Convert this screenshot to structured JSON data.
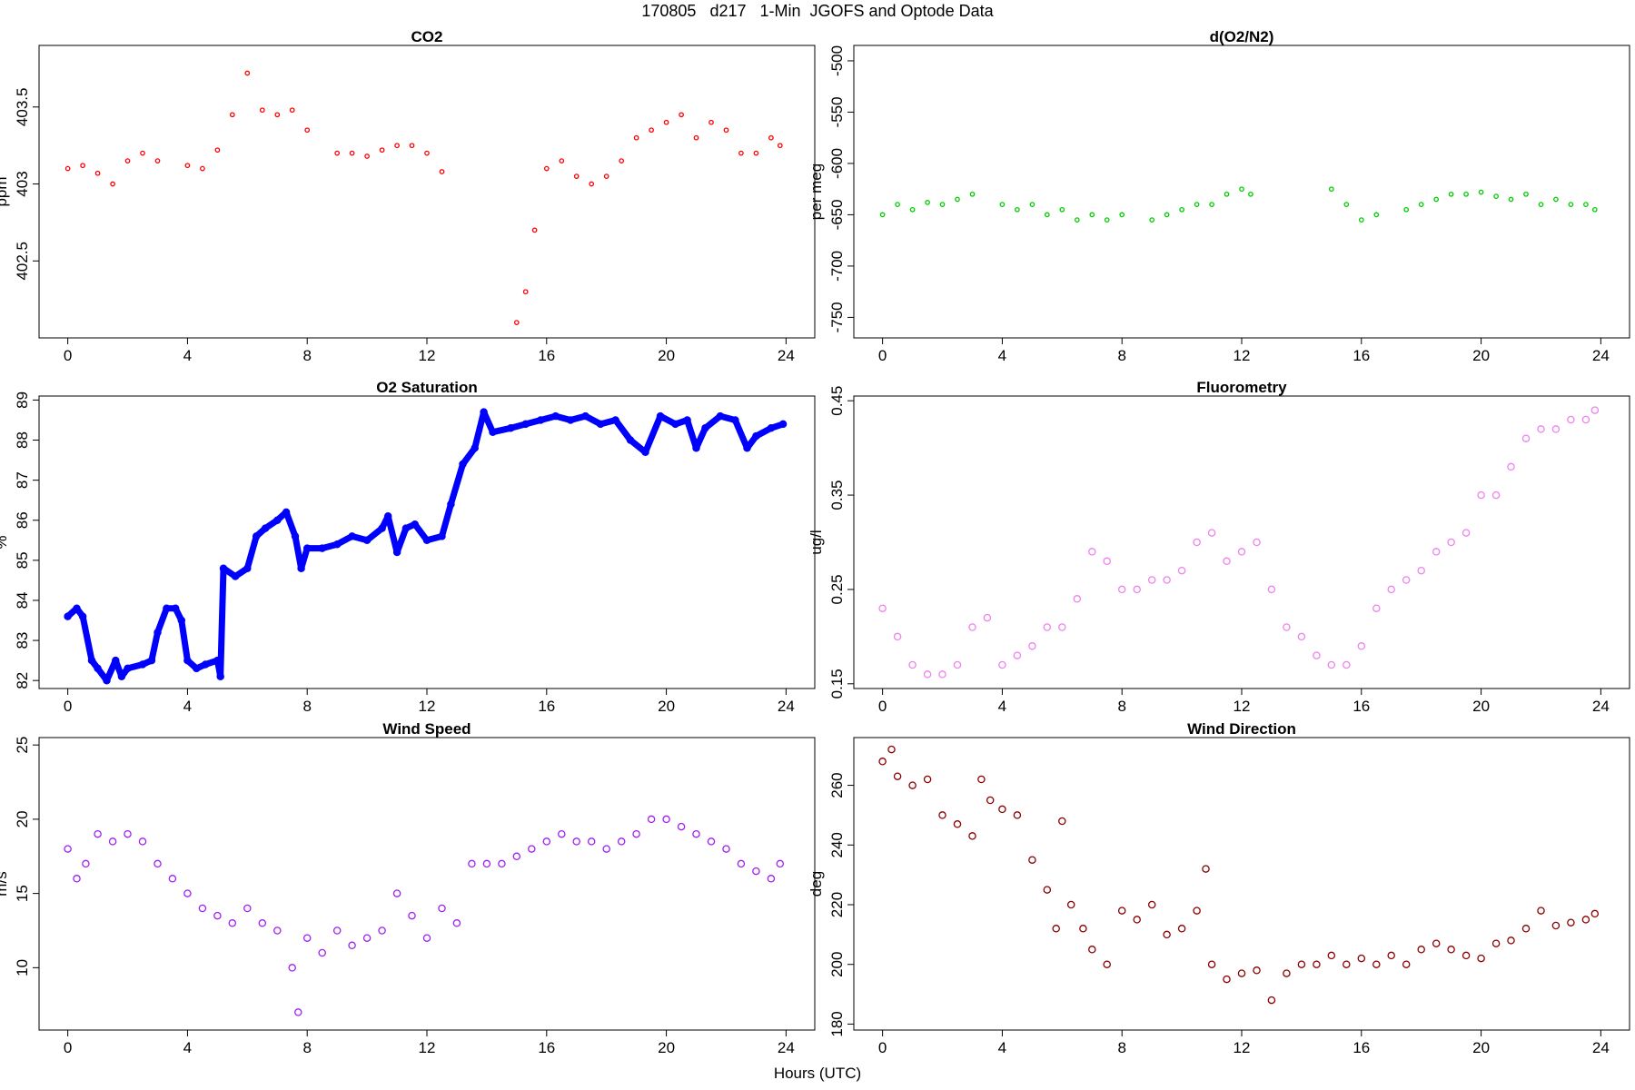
{
  "main_title": "170805   d217   1-Min  JGOFS and Optode Data",
  "xlabel": "Hours (UTC)",
  "chart_data": [
    {
      "type": "scatter",
      "title": "CO2",
      "ylabel": "ppm",
      "color": "#ff0000",
      "marker": "small-circle",
      "xlim": [
        -0.96,
        24.96
      ],
      "ylim": [
        402.0,
        403.9
      ],
      "xticks": [
        0,
        4,
        8,
        12,
        16,
        20,
        24
      ],
      "yticks": [
        402.5,
        403.0,
        403.5
      ],
      "points": [
        [
          0.0,
          403.1
        ],
        [
          0.5,
          403.12
        ],
        [
          1.0,
          403.07
        ],
        [
          1.5,
          403.0
        ],
        [
          2.0,
          403.15
        ],
        [
          2.5,
          403.2
        ],
        [
          3.0,
          403.15
        ],
        [
          4.0,
          403.12
        ],
        [
          4.5,
          403.1
        ],
        [
          5.0,
          403.22
        ],
        [
          5.5,
          403.45
        ],
        [
          6.0,
          403.72
        ],
        [
          6.5,
          403.48
        ],
        [
          7.0,
          403.45
        ],
        [
          7.5,
          403.48
        ],
        [
          8.0,
          403.35
        ],
        [
          9.0,
          403.2
        ],
        [
          9.5,
          403.2
        ],
        [
          10.0,
          403.18
        ],
        [
          10.5,
          403.22
        ],
        [
          11.0,
          403.25
        ],
        [
          11.5,
          403.25
        ],
        [
          12.0,
          403.2
        ],
        [
          12.5,
          403.08
        ],
        [
          15.0,
          402.1
        ],
        [
          15.3,
          402.3
        ],
        [
          15.6,
          402.7
        ],
        [
          16.0,
          403.1
        ],
        [
          16.5,
          403.15
        ],
        [
          17.0,
          403.05
        ],
        [
          17.5,
          403.0
        ],
        [
          18.0,
          403.05
        ],
        [
          18.5,
          403.15
        ],
        [
          19.0,
          403.3
        ],
        [
          19.5,
          403.35
        ],
        [
          20.0,
          403.4
        ],
        [
          20.5,
          403.45
        ],
        [
          21.0,
          403.3
        ],
        [
          21.5,
          403.4
        ],
        [
          22.0,
          403.35
        ],
        [
          22.5,
          403.2
        ],
        [
          23.0,
          403.2
        ],
        [
          23.5,
          403.3
        ],
        [
          23.8,
          403.25
        ]
      ]
    },
    {
      "type": "scatter",
      "title": "d(O2/N2)",
      "ylabel": "per meg",
      "color": "#00cc00",
      "marker": "small-circle",
      "xlim": [
        -0.96,
        24.96
      ],
      "ylim": [
        -770,
        -485
      ],
      "xticks": [
        0,
        4,
        8,
        12,
        16,
        20,
        24
      ],
      "yticks": [
        -750,
        -700,
        -650,
        -600,
        -550,
        -500
      ],
      "points": [
        [
          0.0,
          -650
        ],
        [
          0.5,
          -640
        ],
        [
          1.0,
          -645
        ],
        [
          1.5,
          -638
        ],
        [
          2.0,
          -640
        ],
        [
          2.5,
          -635
        ],
        [
          3.0,
          -630
        ],
        [
          4.0,
          -640
        ],
        [
          4.5,
          -645
        ],
        [
          5.0,
          -640
        ],
        [
          5.5,
          -650
        ],
        [
          6.0,
          -645
        ],
        [
          6.5,
          -655
        ],
        [
          7.0,
          -650
        ],
        [
          7.5,
          -655
        ],
        [
          8.0,
          -650
        ],
        [
          9.0,
          -655
        ],
        [
          9.5,
          -650
        ],
        [
          10.0,
          -645
        ],
        [
          10.5,
          -640
        ],
        [
          11.0,
          -640
        ],
        [
          11.5,
          -630
        ],
        [
          12.0,
          -625
        ],
        [
          12.3,
          -630
        ],
        [
          15.0,
          -625
        ],
        [
          15.5,
          -640
        ],
        [
          16.0,
          -655
        ],
        [
          16.5,
          -650
        ],
        [
          17.5,
          -645
        ],
        [
          18.0,
          -640
        ],
        [
          18.5,
          -635
        ],
        [
          19.0,
          -630
        ],
        [
          19.5,
          -630
        ],
        [
          20.0,
          -628
        ],
        [
          20.5,
          -632
        ],
        [
          21.0,
          -635
        ],
        [
          21.5,
          -630
        ],
        [
          22.0,
          -640
        ],
        [
          22.5,
          -635
        ],
        [
          23.0,
          -640
        ],
        [
          23.5,
          -640
        ],
        [
          23.8,
          -645
        ]
      ]
    },
    {
      "type": "line",
      "title": "O2 Saturation",
      "ylabel": "%",
      "color": "#0000ff",
      "marker": "circle",
      "xlim": [
        -0.96,
        24.96
      ],
      "ylim": [
        81.8,
        89.1
      ],
      "xticks": [
        0,
        4,
        8,
        12,
        16,
        20,
        24
      ],
      "yticks": [
        82,
        83,
        84,
        85,
        86,
        87,
        88,
        89
      ],
      "points": [
        [
          0.0,
          83.6
        ],
        [
          0.3,
          83.8
        ],
        [
          0.5,
          83.6
        ],
        [
          0.8,
          82.5
        ],
        [
          1.0,
          82.3
        ],
        [
          1.3,
          82.0
        ],
        [
          1.6,
          82.5
        ],
        [
          1.8,
          82.1
        ],
        [
          2.0,
          82.3
        ],
        [
          2.5,
          82.4
        ],
        [
          2.8,
          82.5
        ],
        [
          3.0,
          83.2
        ],
        [
          3.3,
          83.8
        ],
        [
          3.6,
          83.8
        ],
        [
          3.8,
          83.5
        ],
        [
          4.0,
          82.5
        ],
        [
          4.3,
          82.3
        ],
        [
          4.6,
          82.4
        ],
        [
          5.0,
          82.5
        ],
        [
          5.1,
          82.1
        ],
        [
          5.2,
          84.8
        ],
        [
          5.6,
          84.6
        ],
        [
          6.0,
          84.8
        ],
        [
          6.3,
          85.6
        ],
        [
          6.6,
          85.8
        ],
        [
          7.0,
          86.0
        ],
        [
          7.3,
          86.2
        ],
        [
          7.6,
          85.6
        ],
        [
          7.8,
          84.8
        ],
        [
          8.0,
          85.3
        ],
        [
          8.5,
          85.3
        ],
        [
          9.0,
          85.4
        ],
        [
          9.5,
          85.6
        ],
        [
          10.0,
          85.5
        ],
        [
          10.5,
          85.8
        ],
        [
          10.7,
          86.1
        ],
        [
          11.0,
          85.2
        ],
        [
          11.3,
          85.8
        ],
        [
          11.6,
          85.9
        ],
        [
          12.0,
          85.5
        ],
        [
          12.5,
          85.6
        ],
        [
          12.8,
          86.4
        ],
        [
          13.2,
          87.4
        ],
        [
          13.6,
          87.8
        ],
        [
          13.9,
          88.7
        ],
        [
          14.2,
          88.2
        ],
        [
          14.8,
          88.3
        ],
        [
          15.3,
          88.4
        ],
        [
          15.8,
          88.5
        ],
        [
          16.3,
          88.6
        ],
        [
          16.8,
          88.5
        ],
        [
          17.3,
          88.6
        ],
        [
          17.8,
          88.4
        ],
        [
          18.3,
          88.5
        ],
        [
          18.8,
          88.0
        ],
        [
          19.3,
          87.7
        ],
        [
          19.8,
          88.6
        ],
        [
          20.3,
          88.4
        ],
        [
          20.7,
          88.5
        ],
        [
          21.0,
          87.8
        ],
        [
          21.3,
          88.3
        ],
        [
          21.8,
          88.6
        ],
        [
          22.3,
          88.5
        ],
        [
          22.7,
          87.8
        ],
        [
          23.0,
          88.1
        ],
        [
          23.5,
          88.3
        ],
        [
          23.9,
          88.4
        ]
      ]
    },
    {
      "type": "scatter",
      "title": "Fluorometry",
      "ylabel": "ug/l",
      "color": "#ee82ee",
      "marker": "circle",
      "xlim": [
        -0.96,
        24.96
      ],
      "ylim": [
        0.145,
        0.455
      ],
      "xticks": [
        0,
        4,
        8,
        12,
        16,
        20,
        24
      ],
      "yticks": [
        0.15,
        0.25,
        0.35,
        0.45
      ],
      "points": [
        [
          0.0,
          0.23
        ],
        [
          0.5,
          0.2
        ],
        [
          1.0,
          0.17
        ],
        [
          1.5,
          0.16
        ],
        [
          2.0,
          0.16
        ],
        [
          2.5,
          0.17
        ],
        [
          3.0,
          0.21
        ],
        [
          3.5,
          0.22
        ],
        [
          4.0,
          0.17
        ],
        [
          4.5,
          0.18
        ],
        [
          5.0,
          0.19
        ],
        [
          5.5,
          0.21
        ],
        [
          6.0,
          0.21
        ],
        [
          6.5,
          0.24
        ],
        [
          7.0,
          0.29
        ],
        [
          7.5,
          0.28
        ],
        [
          8.0,
          0.25
        ],
        [
          8.5,
          0.25
        ],
        [
          9.0,
          0.26
        ],
        [
          9.5,
          0.26
        ],
        [
          10.0,
          0.27
        ],
        [
          10.5,
          0.3
        ],
        [
          11.0,
          0.31
        ],
        [
          11.5,
          0.28
        ],
        [
          12.0,
          0.29
        ],
        [
          12.5,
          0.3
        ],
        [
          13.0,
          0.25
        ],
        [
          13.5,
          0.21
        ],
        [
          14.0,
          0.2
        ],
        [
          14.5,
          0.18
        ],
        [
          15.0,
          0.17
        ],
        [
          15.5,
          0.17
        ],
        [
          16.0,
          0.19
        ],
        [
          16.5,
          0.23
        ],
        [
          17.0,
          0.25
        ],
        [
          17.5,
          0.26
        ],
        [
          18.0,
          0.27
        ],
        [
          18.5,
          0.29
        ],
        [
          19.0,
          0.3
        ],
        [
          19.5,
          0.31
        ],
        [
          20.0,
          0.35
        ],
        [
          20.5,
          0.35
        ],
        [
          21.0,
          0.38
        ],
        [
          21.5,
          0.41
        ],
        [
          22.0,
          0.42
        ],
        [
          22.5,
          0.42
        ],
        [
          23.0,
          0.43
        ],
        [
          23.5,
          0.43
        ],
        [
          23.8,
          0.44
        ]
      ]
    },
    {
      "type": "scatter",
      "title": "Wind Speed",
      "ylabel": "m/s",
      "color": "#a020f0",
      "marker": "circle",
      "xlim": [
        -0.96,
        24.96
      ],
      "ylim": [
        5.8,
        25.5
      ],
      "xticks": [
        0,
        4,
        8,
        12,
        16,
        20,
        24
      ],
      "yticks": [
        10,
        15,
        20,
        25
      ],
      "points": [
        [
          0.0,
          18
        ],
        [
          0.3,
          16
        ],
        [
          0.6,
          17
        ],
        [
          1.0,
          19
        ],
        [
          1.5,
          18.5
        ],
        [
          2.0,
          19
        ],
        [
          2.5,
          18.5
        ],
        [
          3.0,
          17
        ],
        [
          3.5,
          16
        ],
        [
          4.0,
          15
        ],
        [
          4.5,
          14
        ],
        [
          5.0,
          13.5
        ],
        [
          5.5,
          13
        ],
        [
          6.0,
          14
        ],
        [
          6.5,
          13
        ],
        [
          7.0,
          12.5
        ],
        [
          7.5,
          10
        ],
        [
          7.7,
          7
        ],
        [
          8.0,
          12
        ],
        [
          8.5,
          11
        ],
        [
          9.0,
          12.5
        ],
        [
          9.5,
          11.5
        ],
        [
          10.0,
          12
        ],
        [
          10.5,
          12.5
        ],
        [
          11.0,
          15
        ],
        [
          11.5,
          13.5
        ],
        [
          12.0,
          12
        ],
        [
          12.5,
          14
        ],
        [
          13.0,
          13
        ],
        [
          13.5,
          17
        ],
        [
          14.0,
          17
        ],
        [
          14.5,
          17
        ],
        [
          15.0,
          17.5
        ],
        [
          15.5,
          18
        ],
        [
          16.0,
          18.5
        ],
        [
          16.5,
          19
        ],
        [
          17.0,
          18.5
        ],
        [
          17.5,
          18.5
        ],
        [
          18.0,
          18
        ],
        [
          18.5,
          18.5
        ],
        [
          19.0,
          19
        ],
        [
          19.5,
          20
        ],
        [
          20.0,
          20
        ],
        [
          20.5,
          19.5
        ],
        [
          21.0,
          19
        ],
        [
          21.5,
          18.5
        ],
        [
          22.0,
          18
        ],
        [
          22.5,
          17
        ],
        [
          23.0,
          16.5
        ],
        [
          23.5,
          16
        ],
        [
          23.8,
          17
        ]
      ]
    },
    {
      "type": "scatter",
      "title": "Wind Direction",
      "ylabel": "deg",
      "color": "#8b0000",
      "marker": "circle",
      "xlim": [
        -0.96,
        24.96
      ],
      "ylim": [
        178,
        276
      ],
      "xticks": [
        0,
        4,
        8,
        12,
        16,
        20,
        24
      ],
      "yticks": [
        180,
        200,
        220,
        240,
        260
      ],
      "points": [
        [
          0.0,
          268
        ],
        [
          0.3,
          272
        ],
        [
          0.5,
          263
        ],
        [
          1.0,
          260
        ],
        [
          1.5,
          262
        ],
        [
          2.0,
          250
        ],
        [
          2.5,
          247
        ],
        [
          3.0,
          243
        ],
        [
          3.3,
          262
        ],
        [
          3.6,
          255
        ],
        [
          4.0,
          252
        ],
        [
          4.5,
          250
        ],
        [
          5.0,
          235
        ],
        [
          5.5,
          225
        ],
        [
          5.8,
          212
        ],
        [
          6.0,
          248
        ],
        [
          6.3,
          220
        ],
        [
          6.7,
          212
        ],
        [
          7.0,
          205
        ],
        [
          7.5,
          200
        ],
        [
          8.0,
          218
        ],
        [
          8.5,
          215
        ],
        [
          9.0,
          220
        ],
        [
          9.5,
          210
        ],
        [
          10.0,
          212
        ],
        [
          10.5,
          218
        ],
        [
          10.8,
          232
        ],
        [
          11.0,
          200
        ],
        [
          11.5,
          195
        ],
        [
          12.0,
          197
        ],
        [
          12.5,
          198
        ],
        [
          13.0,
          188
        ],
        [
          13.5,
          197
        ],
        [
          14.0,
          200
        ],
        [
          14.5,
          200
        ],
        [
          15.0,
          203
        ],
        [
          15.5,
          200
        ],
        [
          16.0,
          202
        ],
        [
          16.5,
          200
        ],
        [
          17.0,
          203
        ],
        [
          17.5,
          200
        ],
        [
          18.0,
          205
        ],
        [
          18.5,
          207
        ],
        [
          19.0,
          205
        ],
        [
          19.5,
          203
        ],
        [
          20.0,
          202
        ],
        [
          20.5,
          207
        ],
        [
          21.0,
          208
        ],
        [
          21.5,
          212
        ],
        [
          22.0,
          218
        ],
        [
          22.5,
          213
        ],
        [
          23.0,
          214
        ],
        [
          23.5,
          215
        ],
        [
          23.8,
          217
        ]
      ]
    }
  ]
}
